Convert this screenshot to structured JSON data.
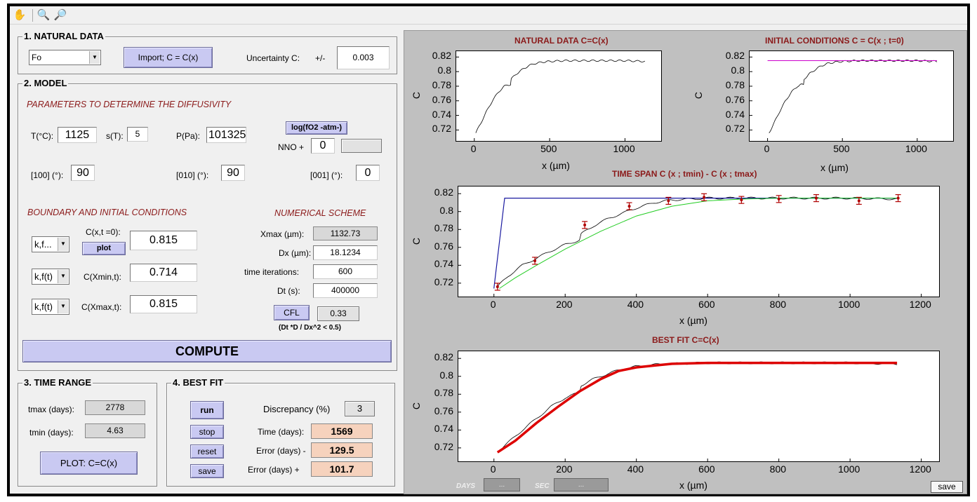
{
  "toolbar": {
    "hand": "pan-hand-icon",
    "zoom_in": "zoom-in-icon",
    "zoom_out": "zoom-out-icon"
  },
  "natural_data": {
    "title": "1. NATURAL DATA",
    "element": "Fo",
    "import_label": "Import; C = C(x)",
    "uncertainty_label": "Uncertainty C:",
    "pm": "+/-",
    "uncertainty": "0.003"
  },
  "model": {
    "title": "2. MODEL",
    "diff_header": "PARAMETERS TO DETERMINE THE DIFFUSIVITY",
    "T_label": "T(°C):",
    "T": "1125",
    "sT_label": "s(T):",
    "sT": "5",
    "P_label": "P(Pa):",
    "P": "101325",
    "logfo2_label": "log(fO2 -atm-)",
    "nno_label": "NNO +",
    "nno": "0",
    "a100_label": "[100] (°):",
    "a100": "90",
    "a010_label": "[010] (°):",
    "a010": "90",
    "a001_label": "[001] (°):",
    "a001": "0",
    "bic_header": "BOUNDARY AND INITIAL CONDITIONS",
    "num_header": "NUMERICAL SCHEME",
    "ic_type": "k,f...",
    "ic_label": "C(x,t =0):",
    "plot_label": "plot",
    "ic": "0.815",
    "cmin_type": "k,f(t)",
    "cmin_label": "C(Xmin,t):",
    "cmin": "0.714",
    "cmax_type": "k,f(t)",
    "cmax_label": "C(Xmax,t):",
    "cmax": "0.815",
    "xmax_label": "Xmax (µm):",
    "xmax": "1132.73",
    "dx_label": "Dx (µm):",
    "dx": "18.1234",
    "iter_label": "time iterations:",
    "iter": "600",
    "dt_label": "Dt (s):",
    "dt": "400000",
    "cfl_label": "CFL",
    "cfl": "0.33",
    "cfl_note": "(Dt *D / Dx^2 < 0.5)",
    "compute_label": "COMPUTE"
  },
  "time_range": {
    "title": "3. TIME RANGE",
    "tmax_label": "tmax (days):",
    "tmax": "2778",
    "tmin_label": "tmin (days):",
    "tmin": "4.63",
    "plot_label": "PLOT: C=C(x)"
  },
  "best_fit": {
    "title": "4. BEST FIT",
    "run": "run",
    "stop": "stop",
    "reset": "reset",
    "save": "save",
    "disc_label": "Discrepancy (%)",
    "disc": "3",
    "time_label": "Time (days):",
    "time": "1569",
    "errm_label": "Error (days)  -",
    "errm": "129.5",
    "errp_label": "Error (days)  +",
    "errp": "101.7"
  },
  "footer": {
    "days_label": "DAYS",
    "days_val": "...",
    "sec_label": "SEC",
    "sec_val": "...",
    "save": "save"
  },
  "chart_data": [
    {
      "type": "line",
      "title": "NATURAL DATA  C=C(x)",
      "xlabel": "x  (µm)",
      "ylabel": "C",
      "xlim": [
        -120,
        1240
      ],
      "ylim": [
        0.705,
        0.828
      ],
      "xticks": [
        "0",
        "500",
        "1000"
      ],
      "yticks": [
        "0.82",
        "0.8",
        "0.78",
        "0.76",
        "0.74",
        "0.72"
      ],
      "series": [
        {
          "x": [
            10,
            40,
            80,
            120,
            160,
            200,
            220,
            240,
            245,
            280,
            320,
            360,
            400,
            450,
            500,
            600,
            700,
            800,
            900,
            1000,
            1132
          ],
          "values": [
            0.716,
            0.728,
            0.745,
            0.76,
            0.772,
            0.78,
            0.782,
            0.782,
            0.79,
            0.797,
            0.803,
            0.808,
            0.811,
            0.813,
            0.814,
            0.815,
            0.815,
            0.815,
            0.815,
            0.815,
            0.814
          ]
        }
      ]
    },
    {
      "type": "line",
      "title": "INITIAL CONDITIONS   C = C(x ; t=0)",
      "xlabel": "x  (µm)",
      "ylabel": "C",
      "xlim": [
        -120,
        1240
      ],
      "ylim": [
        0.705,
        0.828
      ],
      "xticks": [
        "0",
        "500",
        "1000"
      ],
      "yticks": [
        "0.82",
        "0.8",
        "0.78",
        "0.76",
        "0.74",
        "0.72"
      ],
      "series": [
        {
          "x": [
            10,
            40,
            80,
            120,
            160,
            200,
            220,
            240,
            245,
            280,
            320,
            360,
            400,
            450,
            500,
            600,
            700,
            800,
            900,
            1000,
            1132
          ],
          "values": [
            0.716,
            0.728,
            0.745,
            0.76,
            0.772,
            0.78,
            0.782,
            0.782,
            0.79,
            0.797,
            0.803,
            0.808,
            0.811,
            0.813,
            0.814,
            0.815,
            0.815,
            0.815,
            0.815,
            0.815,
            0.814
          ]
        },
        {
          "x": [
            0,
            1132
          ],
          "values": [
            0.815,
            0.815
          ]
        }
      ]
    },
    {
      "type": "line",
      "title": "TIME SPAN  C (x ; tmin) - C (x ; tmax)",
      "xlabel": "x  (µm)",
      "ylabel": "C",
      "xlim": [
        -100,
        1250
      ],
      "ylim": [
        0.705,
        0.828
      ],
      "xticks": [
        "0",
        "200",
        "400",
        "600",
        "800",
        "1000",
        "1200"
      ],
      "yticks": [
        "0.82",
        "0.8",
        "0.78",
        "0.76",
        "0.74",
        "0.72"
      ],
      "series": [
        {
          "x": [
            10,
            40,
            80,
            120,
            160,
            200,
            240,
            245,
            280,
            320,
            360,
            400,
            450,
            500,
            600,
            700,
            800,
            900,
            1000,
            1132
          ],
          "values": [
            0.716,
            0.728,
            0.74,
            0.748,
            0.756,
            0.763,
            0.768,
            0.775,
            0.784,
            0.792,
            0.798,
            0.804,
            0.81,
            0.813,
            0.815,
            0.815,
            0.815,
            0.815,
            0.815,
            0.814
          ]
        },
        {
          "x": [
            0,
            30,
            1132
          ],
          "values": [
            0.714,
            0.815,
            0.815
          ]
        },
        {
          "x": [
            15,
            60,
            120,
            200,
            300,
            400,
            500,
            600,
            700,
            800,
            900,
            1000,
            1132
          ],
          "values": [
            0.714,
            0.726,
            0.74,
            0.758,
            0.778,
            0.795,
            0.806,
            0.812,
            0.814,
            0.815,
            0.815,
            0.815,
            0.815
          ]
        },
        {
          "x": [
            10,
            115,
            255,
            380,
            490,
            590,
            695,
            800,
            905,
            1025,
            1135
          ],
          "values": [
            0.716,
            0.745,
            0.785,
            0.806,
            0.812,
            0.816,
            0.813,
            0.814,
            0.815,
            0.812,
            0.815
          ]
        }
      ]
    },
    {
      "type": "line",
      "title": "BEST FIT   C=C(x)",
      "xlabel": "x  (µm)",
      "ylabel": "C",
      "xlim": [
        -100,
        1250
      ],
      "ylim": [
        0.705,
        0.828
      ],
      "xticks": [
        "0",
        "200",
        "400",
        "600",
        "800",
        "1000",
        "1200"
      ],
      "yticks": [
        "0.82",
        "0.8",
        "0.78",
        "0.76",
        "0.74",
        "0.72"
      ],
      "series": [
        {
          "x": [
            10,
            40,
            80,
            120,
            160,
            200,
            240,
            245,
            280,
            320,
            360,
            400,
            450,
            500,
            600,
            700,
            800,
            900,
            1000,
            1132
          ],
          "values": [
            0.716,
            0.726,
            0.74,
            0.753,
            0.766,
            0.776,
            0.782,
            0.79,
            0.797,
            0.803,
            0.808,
            0.811,
            0.813,
            0.814,
            0.815,
            0.815,
            0.815,
            0.815,
            0.815,
            0.814
          ]
        },
        {
          "x": [
            10,
            60,
            120,
            180,
            240,
            300,
            350,
            400,
            450,
            500,
            600,
            700,
            800,
            900,
            1000,
            1132
          ],
          "values": [
            0.715,
            0.728,
            0.748,
            0.766,
            0.783,
            0.797,
            0.806,
            0.81,
            0.812,
            0.814,
            0.815,
            0.815,
            0.815,
            0.815,
            0.815,
            0.815
          ]
        }
      ]
    }
  ]
}
